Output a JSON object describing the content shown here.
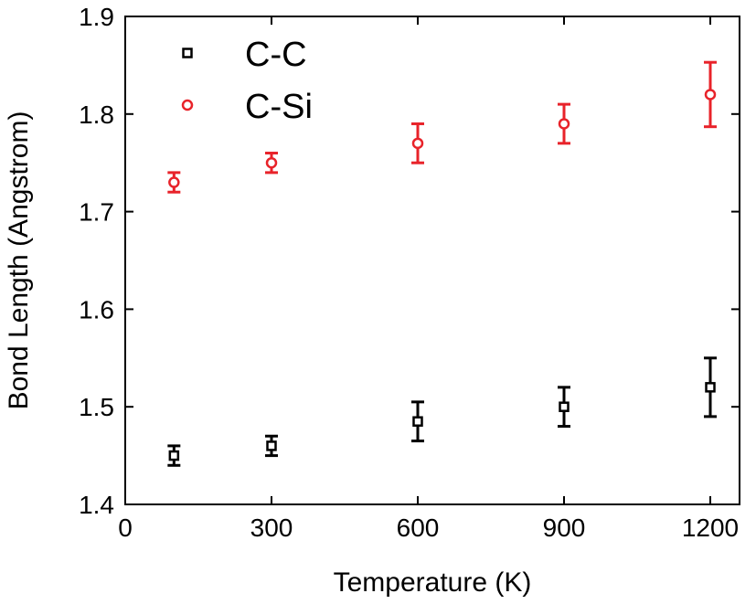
{
  "chart_data": {
    "type": "scatter",
    "xlabel": "Temperature (K)",
    "ylabel": "Bond Length (Angstrom)",
    "xlim": [
      0,
      1260
    ],
    "ylim": [
      1.4,
      1.9
    ],
    "xticks": [
      0,
      300,
      600,
      900,
      1200
    ],
    "yticks": [
      1.4,
      1.5,
      1.6,
      1.7,
      1.8,
      1.9
    ],
    "x_tick_labels": [
      "0",
      "300",
      "600",
      "900",
      "1200"
    ],
    "y_tick_labels": [
      "1.4",
      "1.5",
      "1.6",
      "1.7",
      "1.8",
      "1.9"
    ],
    "grid": false,
    "legend_position": "top-left",
    "series": [
      {
        "name": "C-C",
        "color": "#000000",
        "marker": "square",
        "x": [
          100,
          300,
          600,
          900,
          1200
        ],
        "y": [
          1.45,
          1.46,
          1.485,
          1.5,
          1.52
        ],
        "err": [
          0.01,
          0.01,
          0.02,
          0.02,
          0.03
        ]
      },
      {
        "name": "C-Si",
        "color": "#e8232a",
        "marker": "circle",
        "x": [
          100,
          300,
          600,
          900,
          1200
        ],
        "y": [
          1.73,
          1.75,
          1.77,
          1.79,
          1.82
        ],
        "err": [
          0.01,
          0.01,
          0.02,
          0.02,
          0.033
        ]
      }
    ]
  }
}
